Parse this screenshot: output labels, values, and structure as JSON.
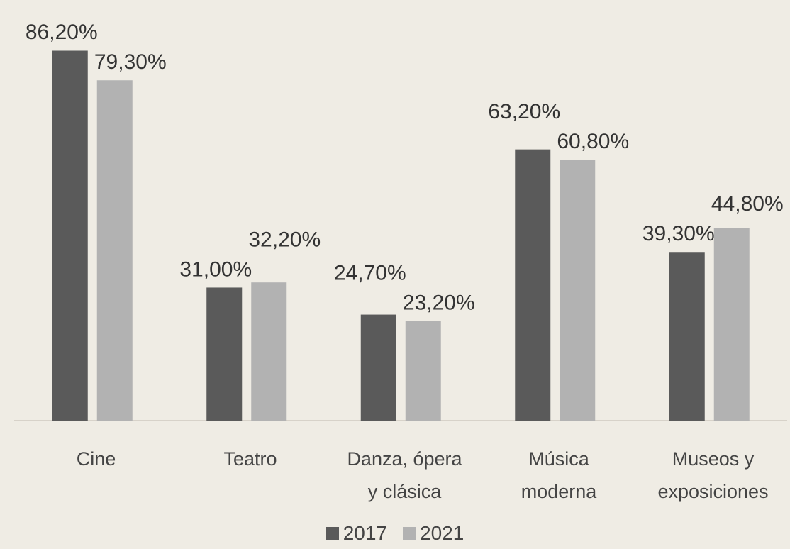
{
  "chart_data": {
    "type": "bar",
    "categories": [
      "Cine",
      "Teatro",
      "Danza, ópera\ny clásica",
      "Música\nmoderna",
      "Museos y\nexposiciones"
    ],
    "series": [
      {
        "name": "2017",
        "color": "#5a5a5a",
        "values": [
          86.2,
          31.0,
          24.7,
          63.2,
          39.3
        ],
        "value_labels": [
          "86,20%",
          "31,00%",
          "24,70%",
          "63,20%",
          "39,30%"
        ]
      },
      {
        "name": "2021",
        "color": "#b2b2b2",
        "values": [
          79.3,
          32.2,
          23.2,
          60.8,
          44.8
        ],
        "value_labels": [
          "79,30%",
          "32,20%",
          "23,20%",
          "60,80%",
          "44,80%"
        ]
      }
    ],
    "ylim": [
      0,
      90
    ]
  }
}
